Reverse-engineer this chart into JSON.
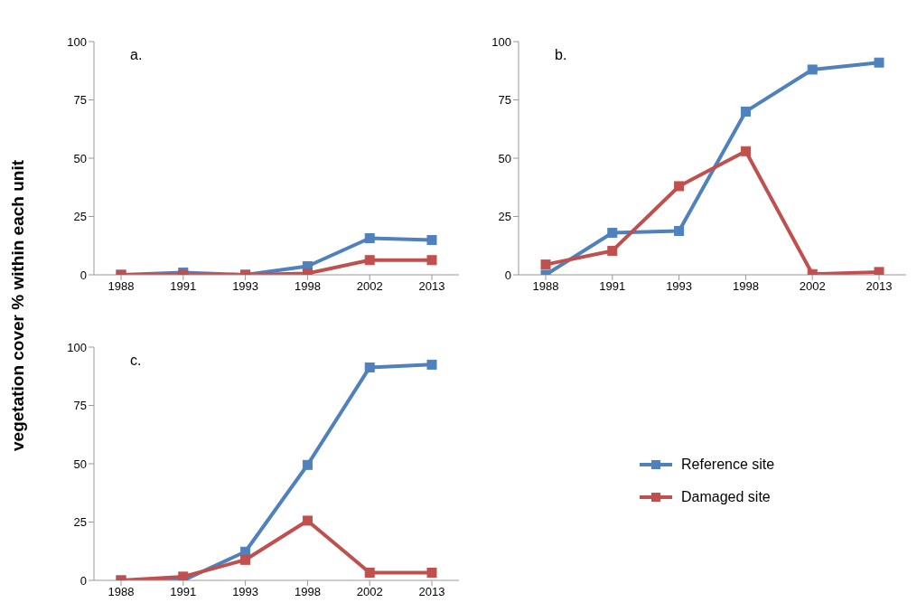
{
  "chart_data": [
    {
      "type": "line",
      "annotations": [
        "a."
      ],
      "ylabel": "vegetation cover % within each unit",
      "categories": [
        "1988",
        "1991",
        "1993",
        "1998",
        "2002",
        "2013"
      ],
      "series": [
        {
          "color": "#4f81bd",
          "values": [
            0,
            1,
            0,
            3.7,
            15.7,
            14.9
          ]
        },
        {
          "color": "#c0504d",
          "values": [
            0,
            0,
            0,
            0.6,
            6.3,
            6.3
          ]
        }
      ],
      "ylim": [
        0,
        100
      ],
      "yticks": [
        0,
        25,
        50,
        75,
        100
      ],
      "grid": false,
      "legend": false,
      "marker": "square",
      "line_style": "solid"
    },
    {
      "type": "line",
      "annotations": [
        "b."
      ],
      "categories": [
        "1988",
        "1991",
        "1993",
        "1998",
        "2002",
        "2013"
      ],
      "series": [
        {
          "color": "#4f81bd",
          "values": [
            0,
            18,
            18.8,
            70,
            88,
            91
          ]
        },
        {
          "color": "#c0504d",
          "values": [
            4.4,
            10.3,
            38,
            53,
            0.3,
            1.2
          ]
        }
      ],
      "ylim": [
        0,
        100
      ],
      "yticks": [
        0,
        25,
        50,
        75,
        100
      ],
      "grid": false,
      "legend": false,
      "marker": "square",
      "line_style": "solid"
    },
    {
      "type": "line",
      "annotations": [
        "c."
      ],
      "categories": [
        "1988",
        "1991",
        "1993",
        "1998",
        "2002",
        "2013"
      ],
      "series": [
        {
          "name": "Reference site",
          "color": "#4f81bd",
          "values": [
            0,
            0,
            12.3,
            49.5,
            91.3,
            92.5
          ]
        },
        {
          "name": "Damaged site",
          "color": "#c0504d",
          "values": [
            0,
            1.6,
            8.8,
            25.6,
            3.3,
            3.3
          ]
        }
      ],
      "ylim": [
        0,
        100
      ],
      "yticks": [
        0,
        25,
        50,
        75,
        100
      ],
      "grid": false,
      "legend": "right",
      "marker": "square",
      "line_style": "solid"
    }
  ]
}
